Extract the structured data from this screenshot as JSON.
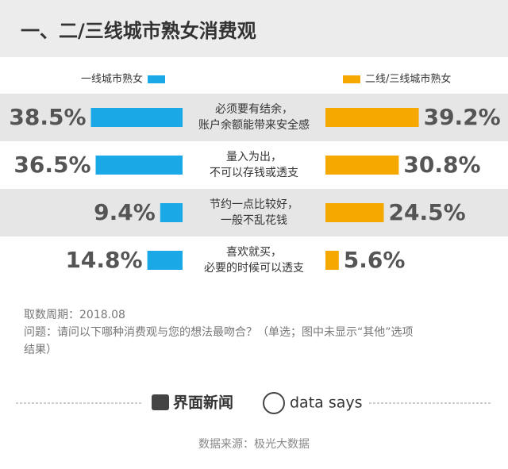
{
  "chart_data": {
    "type": "butterfly",
    "title": "一、二/三线城市熟女消费观",
    "categories": [
      [
        "必须要有结余，",
        "账户余额能带来安全感"
      ],
      [
        "量入为出，",
        "不可以存钱或透支"
      ],
      [
        "节约一点比较好，",
        "一般不乱花钱"
      ],
      [
        "喜欢就买，",
        "必要的时候可以透支"
      ]
    ],
    "series": [
      {
        "name": "一线城市熟女",
        "color": "#1aa9e6",
        "values": [
          38.5,
          36.5,
          9.4,
          14.8
        ],
        "value_labels": [
          "38.5%",
          "36.5%",
          "9.4%",
          "14.8%"
        ]
      },
      {
        "name": "二线/三线城市熟女",
        "color": "#f5a800",
        "values": [
          39.2,
          30.8,
          24.5,
          5.6
        ],
        "value_labels": [
          "39.2%",
          "30.8%",
          "24.5%",
          "5.6%"
        ]
      }
    ],
    "notes": [
      "取数周期：2018.08",
      "问题：请问以下哪种消费观与您的想法最吻合？（单选；图中未显示“其他”选项",
      "结果）"
    ],
    "brands": [
      "界面新闻",
      "data says"
    ],
    "source": "数据来源：极光大数据"
  }
}
